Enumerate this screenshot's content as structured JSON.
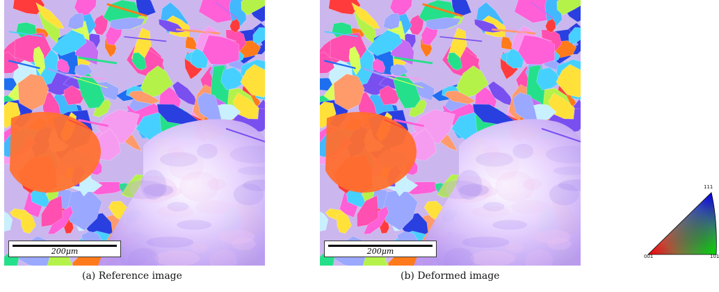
{
  "panels": [
    {
      "id": "a",
      "caption": "(a)  Reference image",
      "scale_bar": "200μm"
    },
    {
      "id": "b",
      "caption": "(b)  Deformed image",
      "scale_bar": "200μm"
    }
  ],
  "ipf_key": {
    "labels": {
      "top": "111",
      "left": "001",
      "right": "101"
    },
    "colors": {
      "001": "#ff0000",
      "101": "#00ff00",
      "111": "#0000ff"
    }
  },
  "palette": [
    "#1e6ef0",
    "#ff7a1a",
    "#c76bf2",
    "#ff4fb0",
    "#b4f24a",
    "#46d0ff",
    "#ffe13a",
    "#7a4ff0",
    "#ff3b3b",
    "#25e08a",
    "#f59cf0",
    "#9aa8ff",
    "#ff9a6b",
    "#42b8ff",
    "#d8ff5a",
    "#2a3fe0",
    "#ff5fd7",
    "#c8f0ff"
  ]
}
